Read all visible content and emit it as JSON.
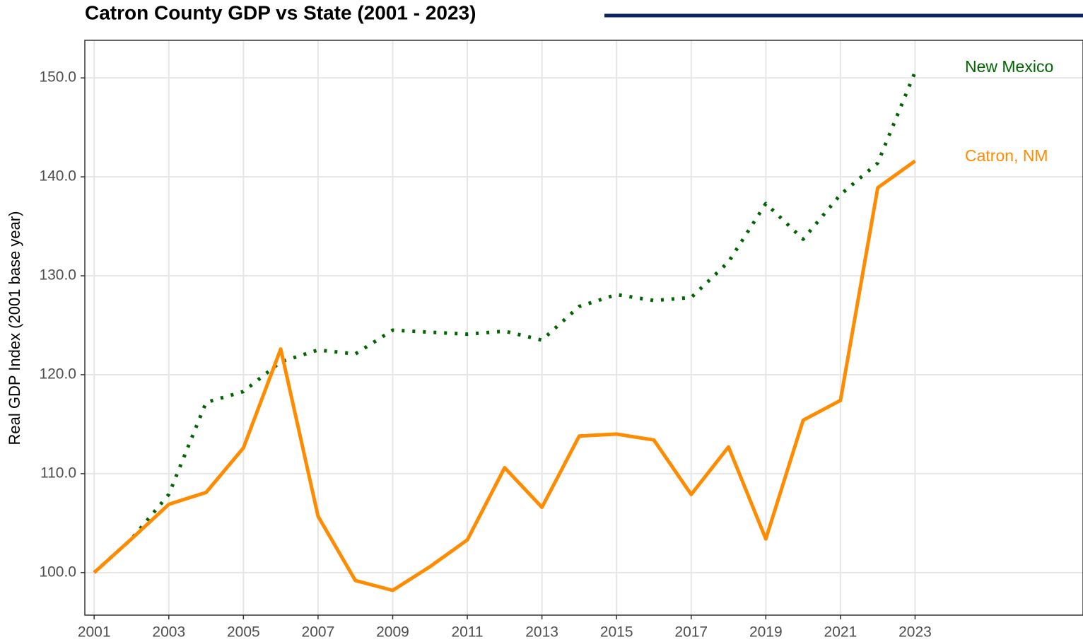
{
  "chart_data": {
    "type": "line",
    "title": "Catron County GDP vs State (2001 - 2023)",
    "y_label": "Real GDP Index (2001 base year)",
    "x": [
      2001,
      2002,
      2003,
      2004,
      2005,
      2006,
      2007,
      2008,
      2009,
      2010,
      2011,
      2012,
      2013,
      2014,
      2015,
      2016,
      2017,
      2018,
      2019,
      2020,
      2021,
      2022,
      2023
    ],
    "series": [
      {
        "name": "New Mexico",
        "color": "#006400",
        "style": "dotted",
        "values": [
          100,
          103.4,
          107.9,
          117.2,
          118.3,
          121.3,
          122.5,
          122.1,
          124.5,
          124.3,
          124.1,
          124.4,
          123.5,
          126.9,
          128.1,
          127.5,
          127.8,
          131.4,
          137.3,
          133.7,
          138.2,
          141.4,
          150.6
        ]
      },
      {
        "name": "Catron, NM",
        "color": "#ff8c00",
        "style": "solid",
        "values": [
          100,
          103.4,
          106.9,
          108.1,
          112.6,
          122.6,
          105.7,
          99.2,
          98.2,
          100.6,
          103.3,
          110.6,
          106.6,
          113.8,
          114.0,
          113.4,
          107.9,
          112.7,
          103.4,
          115.4,
          117.4,
          138.9,
          141.6
        ]
      }
    ],
    "xlim": [
      2000.75,
      2027.5
    ],
    "ylim": [
      95.7,
      153.8
    ],
    "xticks": [
      2001,
      2003,
      2005,
      2007,
      2009,
      2011,
      2013,
      2015,
      2017,
      2019,
      2021,
      2023
    ],
    "yticks": [
      {
        "value": 100,
        "label": "100.0"
      },
      {
        "value": 110,
        "label": "110.0"
      },
      {
        "value": 120,
        "label": "120.0"
      },
      {
        "value": 130,
        "label": "130.0"
      },
      {
        "value": 140,
        "label": "140.0"
      },
      {
        "value": 150,
        "label": "150.0"
      }
    ],
    "grid": true
  }
}
